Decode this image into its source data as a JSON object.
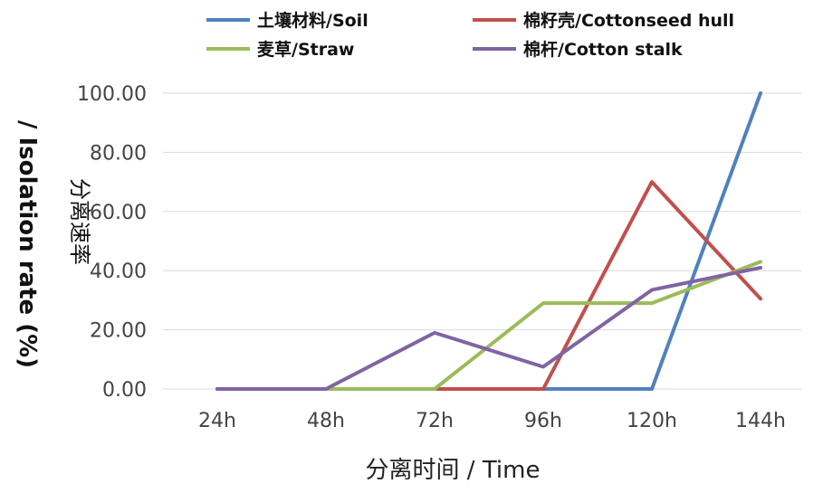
{
  "chart_data": {
    "type": "line",
    "categories": [
      "24h",
      "48h",
      "72h",
      "96h",
      "120h",
      "144h"
    ],
    "series": [
      {
        "name": "土壤材料/Soil",
        "color": "#4F81BD",
        "values": [
          0,
          0,
          0,
          0,
          0,
          100
        ]
      },
      {
        "name": "棉籽壳/Cottonseed hull",
        "color": "#C0504D",
        "values": [
          0,
          0,
          0,
          0,
          70,
          30.5
        ]
      },
      {
        "name": "麦草/Straw",
        "color": "#9BBB59",
        "values": [
          0,
          0,
          0,
          29,
          29,
          43
        ]
      },
      {
        "name": "棉杆/Cotton stalk",
        "color": "#8064A2",
        "values": [
          0,
          0,
          19,
          7.5,
          33.5,
          41
        ]
      }
    ],
    "xlabel": "分离时间 / Time",
    "ylabel_cn": "分离速率",
    "ylabel_en": "/ Isolation rate (%)",
    "ylim": [
      0,
      100
    ],
    "yticks": [
      "0.00",
      "20.00",
      "40.00",
      "60.00",
      "80.00",
      "100.00"
    ],
    "grid": "horizontal",
    "legend_position": "top"
  }
}
